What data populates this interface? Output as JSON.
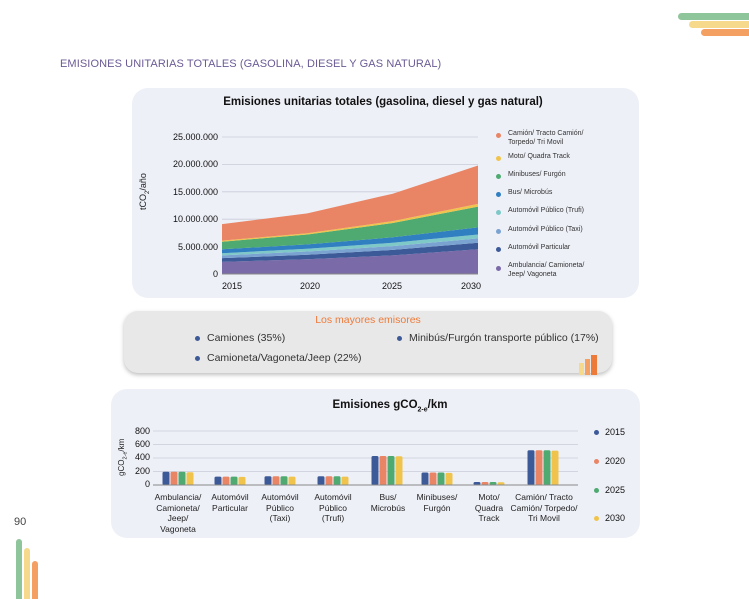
{
  "header": {
    "section_title": "EMISIONES UNITARIAS TOTALES (GASOLINA, DIESEL Y GAS NATURAL)"
  },
  "page_number": "90",
  "colors": {
    "accent_green": "#8fc59a",
    "accent_yellow": "#f6d98a",
    "accent_orange": "#f4a063",
    "title_purple": "#6b5b95",
    "panel_bg": "#eef0f8"
  },
  "area_chart": {
    "title": "Emisiones unitarias totales (gasolina, diesel y gas natural)",
    "ylabel_main": "tCO",
    "ylabel_sub": "2",
    "ylabel_rest": "/año",
    "y_ticks": [
      "25.000.000",
      "20.000.000",
      "15.000.000",
      "10.000.000",
      "5.000.000",
      "0"
    ],
    "x_ticks": [
      "2015",
      "2020",
      "2025",
      "2030"
    ]
  },
  "emitters": {
    "title": "Los mayores emisores",
    "items": [
      "Camiones (35%)",
      "Minibús/Furgón transporte público (17%)",
      "Camioneta/Vagoneta/Jeep (22%)"
    ]
  },
  "bar_chart": {
    "title_pre": "Emisiones gCO",
    "title_sub": "2-e",
    "title_post": "/km",
    "ylabel_main": "gCO",
    "ylabel_sub": "2-e",
    "ylabel_rest": "/km",
    "y_ticks": [
      "800",
      "600",
      "400",
      "200",
      "0"
    ],
    "categories": [
      "Ambulancia/ Camioneta/ Jeep/ Vagoneta",
      "Automóvil Particular",
      "Automóvil Público (Taxi)",
      "Automóvil Público (Trufi)",
      "Bus/ Microbús",
      "Minibuses/ Furgón",
      "Moto/ Quadra Track",
      "Camión/ Tracto Camión/ Torpedo/ Tri Movil"
    ]
  },
  "chart_data": [
    {
      "type": "area",
      "stacked": true,
      "title": "Emisiones unitarias totales (gasolina, diesel y gas natural)",
      "ylabel": "tCO2/año",
      "xlabel": "",
      "x": [
        2015,
        2020,
        2025,
        2030
      ],
      "ylim": [
        0,
        25000000
      ],
      "legend_position": "right",
      "series": [
        {
          "name": "Ambulancia/ Camioneta/ Jeep/ Vagoneta",
          "color": "#7b6aa8",
          "values": [
            2200000,
            2700000,
            3400000,
            4500000
          ]
        },
        {
          "name": "Automóvil Particular",
          "color": "#3d5a98",
          "values": [
            700000,
            800000,
            1000000,
            1200000
          ]
        },
        {
          "name": "Automóvil Público (Taxi)",
          "color": "#7ba3d1",
          "values": [
            500000,
            600000,
            700000,
            800000
          ]
        },
        {
          "name": "Automóvil Público (Trufi)",
          "color": "#7fc8c8",
          "values": [
            400000,
            500000,
            600000,
            700000
          ]
        },
        {
          "name": "Bus/ Microbús",
          "color": "#2f7fc1",
          "values": [
            700000,
            800000,
            1000000,
            1300000
          ]
        },
        {
          "name": "Minibuses/ Furgón",
          "color": "#4faa72",
          "values": [
            1400000,
            1800000,
            2600000,
            3800000
          ]
        },
        {
          "name": "Moto/ Quadra Track",
          "color": "#f0c44c",
          "values": [
            200000,
            250000,
            350000,
            500000
          ]
        },
        {
          "name": "Camión/ Tracto Camión/ Torpedo/ Tri Movil",
          "color": "#e98565",
          "values": [
            3000000,
            3600000,
            5000000,
            7000000
          ]
        }
      ]
    },
    {
      "type": "bar",
      "title": "Emisiones gCO2-e/km",
      "ylabel": "gCO2-e/km",
      "xlabel": "",
      "ylim": [
        0,
        800
      ],
      "legend_position": "right",
      "categories": [
        "Ambulancia/ Camioneta/ Jeep/ Vagoneta",
        "Automóvil Particular",
        "Automóvil Público (Taxi)",
        "Automóvil Público (Trufi)",
        "Bus/ Microbús",
        "Minibuses/ Furgón",
        "Moto/ Quadra Track",
        "Camión/ Tracto Camión/ Torpedo/ Tri Movil"
      ],
      "series": [
        {
          "name": "2015",
          "color": "#3d5a98",
          "values": [
            195,
            125,
            130,
            130,
            430,
            185,
            45,
            515
          ]
        },
        {
          "name": "2020",
          "color": "#e98565",
          "values": [
            195,
            125,
            130,
            130,
            430,
            185,
            45,
            515
          ]
        },
        {
          "name": "2025",
          "color": "#4faa72",
          "values": [
            195,
            125,
            130,
            130,
            430,
            185,
            45,
            515
          ]
        },
        {
          "name": "2030",
          "color": "#f0c44c",
          "values": [
            190,
            120,
            125,
            125,
            425,
            180,
            40,
            510
          ]
        }
      ]
    }
  ]
}
